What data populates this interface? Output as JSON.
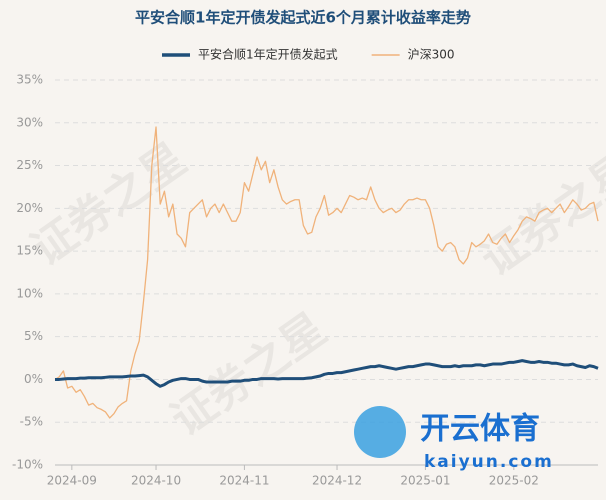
{
  "chart_data": {
    "type": "line",
    "title": "平安合顺1年定开债发起式近6个月累计收益率走势",
    "watermark": "证券之星",
    "logo_text": "开云体育",
    "logo_url": "kaiyun.com",
    "categories": [
      null,
      null,
      null,
      null,
      "2024-09",
      null,
      null,
      null,
      null,
      null,
      null,
      null,
      null,
      null,
      null,
      null,
      null,
      null,
      null,
      null,
      null,
      null,
      null,
      null,
      "2024-10",
      null,
      null,
      null,
      null,
      null,
      null,
      null,
      null,
      null,
      null,
      null,
      null,
      null,
      null,
      null,
      null,
      null,
      null,
      null,
      null,
      "2024-11",
      null,
      null,
      null,
      null,
      null,
      null,
      null,
      null,
      null,
      null,
      null,
      null,
      null,
      null,
      null,
      null,
      null,
      null,
      null,
      null,
      null,
      "2024-12",
      null,
      null,
      null,
      null,
      null,
      null,
      null,
      null,
      null,
      null,
      null,
      null,
      null,
      null,
      null,
      null,
      null,
      null,
      null,
      null,
      "2025-01",
      null,
      null,
      null,
      null,
      null,
      null,
      null,
      null,
      null,
      null,
      null,
      null,
      null,
      null,
      null,
      null,
      null,
      null,
      null,
      null,
      "2025-02",
      null,
      null,
      null,
      null,
      null,
      null,
      null,
      null,
      null,
      null,
      null,
      null,
      null,
      null,
      null,
      null,
      null,
      null,
      null,
      null
    ],
    "series": [
      {
        "name": "平安合顺1年定开债发起式",
        "color": "#1f4e79",
        "values": [
          0,
          0,
          0.05,
          0.1,
          0.1,
          0.1,
          0.15,
          0.15,
          0.2,
          0.2,
          0.2,
          0.2,
          0.25,
          0.3,
          0.3,
          0.3,
          0.3,
          0.35,
          0.4,
          0.4,
          0.45,
          0.5,
          0.3,
          -0.1,
          -0.5,
          -0.8,
          -0.6,
          -0.3,
          -0.1,
          0,
          0.1,
          0.1,
          0,
          0,
          0,
          -0.2,
          -0.3,
          -0.3,
          -0.3,
          -0.3,
          -0.3,
          -0.3,
          -0.2,
          -0.2,
          -0.2,
          -0.1,
          -0.1,
          0,
          0,
          0.1,
          0.1,
          0.1,
          0.1,
          0.05,
          0.1,
          0.1,
          0.1,
          0.1,
          0.1,
          0.1,
          0.15,
          0.2,
          0.3,
          0.4,
          0.6,
          0.7,
          0.7,
          0.8,
          0.8,
          0.9,
          1,
          1.1,
          1.2,
          1.3,
          1.4,
          1.5,
          1.5,
          1.6,
          1.5,
          1.4,
          1.3,
          1.2,
          1.3,
          1.4,
          1.5,
          1.5,
          1.6,
          1.7,
          1.8,
          1.8,
          1.7,
          1.6,
          1.5,
          1.5,
          1.5,
          1.6,
          1.5,
          1.6,
          1.6,
          1.6,
          1.7,
          1.7,
          1.6,
          1.7,
          1.8,
          1.8,
          1.8,
          1.9,
          2,
          2,
          2.1,
          2.2,
          2.1,
          2,
          2,
          2.1,
          2,
          2,
          1.9,
          1.9,
          1.8,
          1.7,
          1.7,
          1.8,
          1.6,
          1.5,
          1.4,
          1.6,
          1.5,
          1.3
        ]
      },
      {
        "name": "沪深300",
        "color": "#f0b27a",
        "values": [
          0,
          0.3,
          1,
          -1,
          -0.8,
          -1.5,
          -1.2,
          -2,
          -3,
          -2.8,
          -3.3,
          -3.5,
          -3.8,
          -4.5,
          -4,
          -3.2,
          -2.8,
          -2.5,
          1,
          3,
          4.5,
          9,
          14,
          25,
          29.5,
          20.5,
          22,
          19,
          20.5,
          17,
          16.5,
          15.5,
          19.5,
          20,
          20.5,
          21,
          19,
          20,
          20.5,
          19.5,
          20.5,
          19.5,
          18.5,
          18.5,
          19.5,
          23,
          22,
          24,
          26,
          24.5,
          25.5,
          23,
          24.5,
          22.5,
          21,
          20.5,
          20.8,
          21,
          21,
          18,
          17,
          17.2,
          19,
          20,
          21.5,
          19.2,
          19.5,
          20,
          19.5,
          20.5,
          21.5,
          21.3,
          21,
          21.2,
          21,
          22.5,
          21,
          20,
          19.5,
          19.8,
          20,
          19.5,
          19.8,
          20.5,
          21,
          21,
          21.2,
          21,
          21,
          20,
          18,
          15.5,
          15,
          15.8,
          16,
          15.5,
          14,
          13.5,
          14.2,
          16,
          15.5,
          15.8,
          16.2,
          17,
          16,
          15.8,
          16.5,
          17,
          16,
          16.8,
          17.5,
          18.5,
          19,
          18.8,
          18.5,
          19.5,
          19.8,
          20,
          19.5,
          20,
          20.5,
          19.5,
          20.2,
          21,
          20.5,
          19.8,
          20,
          20.5,
          20.7,
          18.5
        ]
      }
    ],
    "ylim": [
      -10,
      35
    ],
    "yticks": [
      {
        "value": -10,
        "label": "-10%"
      },
      {
        "value": -5,
        "label": "-5%"
      },
      {
        "value": 0,
        "label": "0%"
      },
      {
        "value": 5,
        "label": "5%"
      },
      {
        "value": 10,
        "label": "10%"
      },
      {
        "value": 15,
        "label": "15%"
      },
      {
        "value": 20,
        "label": "20%"
      },
      {
        "value": 25,
        "label": "25%"
      },
      {
        "value": 30,
        "label": "30%"
      },
      {
        "value": 35,
        "label": "35%"
      }
    ],
    "grid": true
  }
}
